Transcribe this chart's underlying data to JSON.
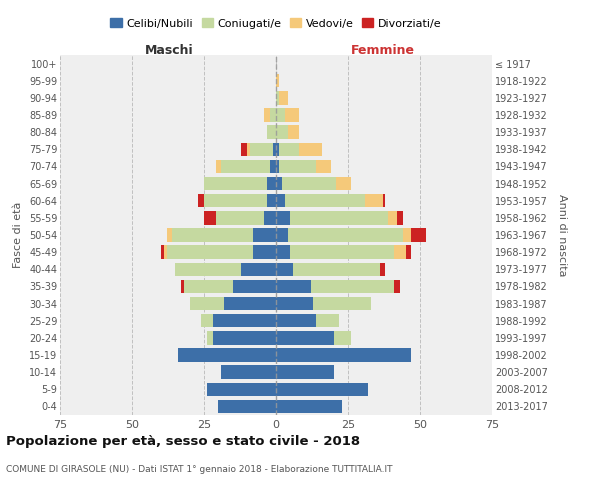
{
  "age_groups": [
    "0-4",
    "5-9",
    "10-14",
    "15-19",
    "20-24",
    "25-29",
    "30-34",
    "35-39",
    "40-44",
    "45-49",
    "50-54",
    "55-59",
    "60-64",
    "65-69",
    "70-74",
    "75-79",
    "80-84",
    "85-89",
    "90-94",
    "95-99",
    "100+"
  ],
  "birth_years": [
    "2013-2017",
    "2008-2012",
    "2003-2007",
    "1998-2002",
    "1993-1997",
    "1988-1992",
    "1983-1987",
    "1978-1982",
    "1973-1977",
    "1968-1972",
    "1963-1967",
    "1958-1962",
    "1953-1957",
    "1948-1952",
    "1943-1947",
    "1938-1942",
    "1933-1937",
    "1928-1932",
    "1923-1927",
    "1918-1922",
    "≤ 1917"
  ],
  "male": {
    "celibi": [
      20,
      24,
      19,
      34,
      22,
      22,
      18,
      15,
      12,
      8,
      8,
      4,
      3,
      3,
      2,
      1,
      0,
      0,
      0,
      0,
      0
    ],
    "coniugati": [
      0,
      0,
      0,
      0,
      2,
      4,
      12,
      17,
      23,
      30,
      28,
      17,
      22,
      22,
      17,
      8,
      3,
      2,
      0,
      0,
      0
    ],
    "vedovi": [
      0,
      0,
      0,
      0,
      0,
      0,
      0,
      0,
      0,
      1,
      2,
      0,
      0,
      0,
      2,
      1,
      0,
      2,
      0,
      0,
      0
    ],
    "divorziati": [
      0,
      0,
      0,
      0,
      0,
      0,
      0,
      1,
      0,
      1,
      0,
      4,
      2,
      0,
      0,
      2,
      0,
      0,
      0,
      0,
      0
    ]
  },
  "female": {
    "nubili": [
      23,
      32,
      20,
      47,
      20,
      14,
      13,
      12,
      6,
      5,
      4,
      5,
      3,
      2,
      1,
      1,
      0,
      0,
      0,
      0,
      0
    ],
    "coniugate": [
      0,
      0,
      0,
      0,
      6,
      8,
      20,
      29,
      30,
      36,
      40,
      34,
      28,
      19,
      13,
      7,
      4,
      3,
      1,
      0,
      0
    ],
    "vedove": [
      0,
      0,
      0,
      0,
      0,
      0,
      0,
      0,
      0,
      4,
      3,
      3,
      6,
      5,
      5,
      8,
      4,
      5,
      3,
      1,
      0
    ],
    "divorziate": [
      0,
      0,
      0,
      0,
      0,
      0,
      0,
      2,
      2,
      2,
      5,
      2,
      1,
      0,
      0,
      0,
      0,
      0,
      0,
      0,
      0
    ]
  },
  "colors": {
    "celibi": "#3d6fa8",
    "coniugati": "#c5d9a0",
    "vedovi": "#f5c97a",
    "divorziati": "#cc2222"
  },
  "xlim": 75,
  "title": "Popolazione per età, sesso e stato civile - 2018",
  "subtitle": "COMUNE DI GIRASOLE (NU) - Dati ISTAT 1° gennaio 2018 - Elaborazione TUTTITALIA.IT",
  "xlabel_left": "Maschi",
  "xlabel_right": "Femmine",
  "ylabel_left": "Fasce di età",
  "ylabel_right": "Anni di nascita",
  "legend_labels": [
    "Celibi/Nubili",
    "Coniugati/e",
    "Vedovi/e",
    "Divorziati/e"
  ],
  "bg_color": "#efefef",
  "grid_color": "#cccccc"
}
